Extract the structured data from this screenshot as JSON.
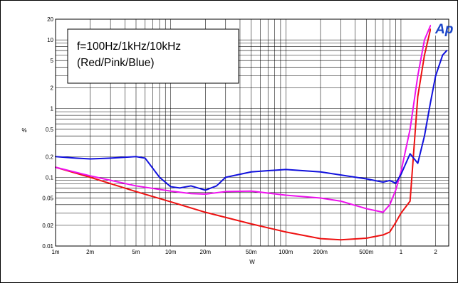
{
  "chart_data": {
    "type": "line",
    "annotation": [
      "f=100Hz/1kHz/10kHz",
      "(Red/Pink/Blue)"
    ],
    "xlabel": "W",
    "ylabel": "%",
    "xscale": "log",
    "yscale": "log",
    "xlim": [
      0.001,
      2.6
    ],
    "ylim": [
      0.01,
      20
    ],
    "grid": true,
    "logo_text": "Ap",
    "x_ticks": [
      {
        "v": 0.001,
        "label": "1m"
      },
      {
        "v": 0.002,
        "label": "2m"
      },
      {
        "v": 0.005,
        "label": "5m"
      },
      {
        "v": 0.01,
        "label": "10m"
      },
      {
        "v": 0.02,
        "label": "20m"
      },
      {
        "v": 0.05,
        "label": "50m"
      },
      {
        "v": 0.1,
        "label": "100m"
      },
      {
        "v": 0.2,
        "label": "200m"
      },
      {
        "v": 0.5,
        "label": "500m"
      },
      {
        "v": 1,
        "label": "1"
      },
      {
        "v": 2,
        "label": "2"
      }
    ],
    "y_ticks": [
      {
        "v": 0.01,
        "label": "0.01"
      },
      {
        "v": 0.02,
        "label": "0.02"
      },
      {
        "v": 0.05,
        "label": "0.05"
      },
      {
        "v": 0.1,
        "label": "0.1"
      },
      {
        "v": 0.2,
        "label": "0.2"
      },
      {
        "v": 0.5,
        "label": "0.5"
      },
      {
        "v": 1,
        "label": "1"
      },
      {
        "v": 2,
        "label": "2"
      },
      {
        "v": 5,
        "label": "5"
      },
      {
        "v": 10,
        "label": "10"
      },
      {
        "v": 20,
        "label": "20"
      }
    ],
    "series": [
      {
        "color": "#ee1111",
        "x": [
          0.001,
          0.002,
          0.005,
          0.01,
          0.02,
          0.05,
          0.1,
          0.2,
          0.3,
          0.5,
          0.7,
          0.8,
          0.9,
          1.0,
          1.2,
          1.4,
          1.6,
          1.8,
          2.0
        ],
        "y": [
          0.14,
          0.1,
          0.062,
          0.044,
          0.031,
          0.021,
          0.016,
          0.0128,
          0.0123,
          0.013,
          0.0145,
          0.016,
          0.022,
          0.03,
          0.045,
          1.5,
          6,
          14,
          17
        ]
      },
      {
        "color": "#ee11ee",
        "x": [
          0.001,
          0.002,
          0.005,
          0.01,
          0.015,
          0.02,
          0.03,
          0.05,
          0.1,
          0.2,
          0.3,
          0.5,
          0.7,
          0.8,
          0.9,
          1.0,
          1.2,
          1.4,
          1.6,
          1.8,
          2.0
        ],
        "y": [
          0.14,
          0.105,
          0.075,
          0.063,
          0.058,
          0.057,
          0.062,
          0.063,
          0.055,
          0.05,
          0.045,
          0.035,
          0.031,
          0.04,
          0.065,
          0.12,
          0.5,
          3,
          10,
          16,
          18
        ]
      },
      {
        "color": "#1111dd",
        "x": [
          0.001,
          0.0015,
          0.002,
          0.003,
          0.005,
          0.006,
          0.008,
          0.01,
          0.012,
          0.015,
          0.02,
          0.025,
          0.03,
          0.05,
          0.1,
          0.2,
          0.5,
          0.7,
          0.8,
          0.9,
          1.0,
          1.2,
          1.4,
          1.6,
          1.8,
          2.0,
          2.3,
          2.5
        ],
        "y": [
          0.2,
          0.19,
          0.185,
          0.19,
          0.2,
          0.19,
          0.1,
          0.073,
          0.07,
          0.075,
          0.065,
          0.075,
          0.1,
          0.12,
          0.13,
          0.12,
          0.095,
          0.085,
          0.09,
          0.082,
          0.11,
          0.22,
          0.16,
          0.4,
          1.2,
          3,
          6,
          7
        ]
      }
    ]
  }
}
